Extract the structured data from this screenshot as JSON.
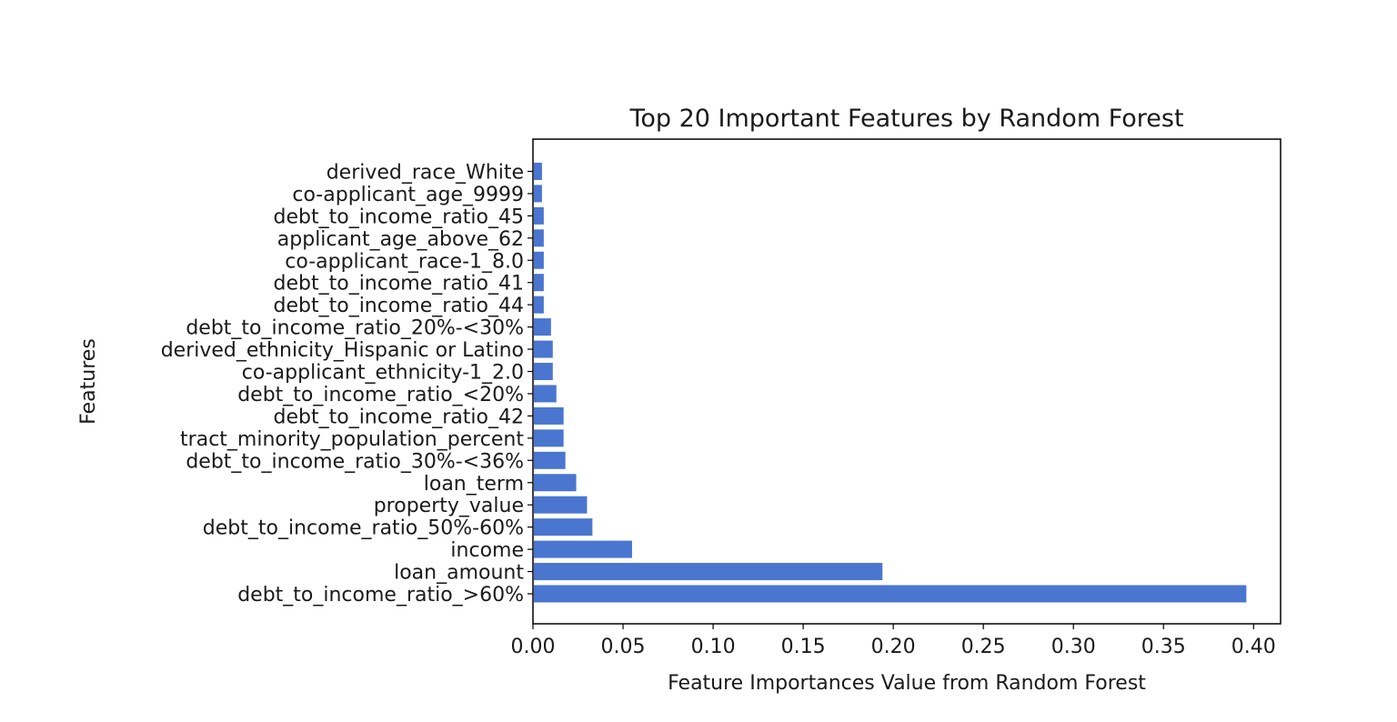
{
  "chart_data": {
    "type": "bar",
    "orientation": "horizontal",
    "title": "Top 20 Important Features by Random Forest",
    "xlabel": "Feature Importances Value from Random Forest",
    "ylabel": "Features",
    "xlim": [
      0.0,
      0.415
    ],
    "xticks": [
      0.0,
      0.05,
      0.1,
      0.15,
      0.2,
      0.25,
      0.3,
      0.35,
      0.4
    ],
    "xtick_labels": [
      "0.00",
      "0.05",
      "0.10",
      "0.15",
      "0.20",
      "0.25",
      "0.30",
      "0.35",
      "0.40"
    ],
    "categories": [
      "debt_to_income_ratio_>60%",
      "loan_amount",
      "income",
      "debt_to_income_ratio_50%-60%",
      "property_value",
      "loan_term",
      "debt_to_income_ratio_30%-<36%",
      "tract_minority_population_percent",
      "debt_to_income_ratio_42",
      "debt_to_income_ratio_<20%",
      "co-applicant_ethnicity-1_2.0",
      "derived_ethnicity_Hispanic or Latino",
      "debt_to_income_ratio_20%-<30%",
      "debt_to_income_ratio_44",
      "debt_to_income_ratio_41",
      "co-applicant_race-1_8.0",
      "applicant_age_above_62",
      "debt_to_income_ratio_45",
      "co-applicant_age_9999",
      "derived_race_White"
    ],
    "values": [
      0.396,
      0.194,
      0.055,
      0.033,
      0.03,
      0.024,
      0.018,
      0.017,
      0.017,
      0.013,
      0.011,
      0.011,
      0.01,
      0.006,
      0.006,
      0.006,
      0.006,
      0.006,
      0.005,
      0.005
    ],
    "bar_color": "#4a76d0",
    "grid": false
  }
}
